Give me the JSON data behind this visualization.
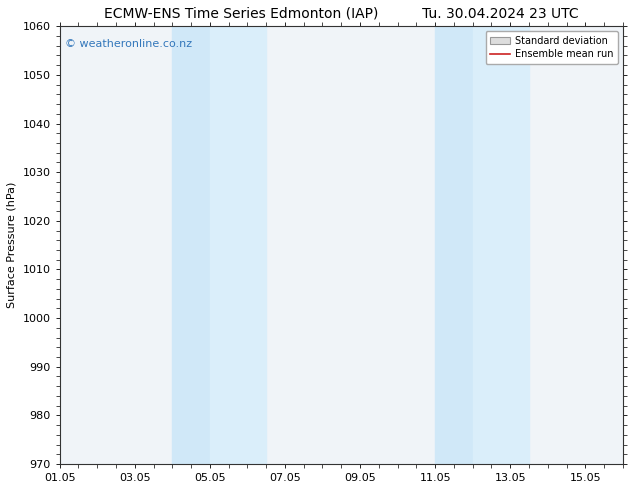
{
  "title_left": "ECMW-ENS Time Series Edmonton (IAP)",
  "title_right": "Tu. 30.04.2024 23 UTC",
  "ylabel": "Surface Pressure (hPa)",
  "ylim": [
    970,
    1060
  ],
  "yticks": [
    970,
    980,
    990,
    1000,
    1010,
    1020,
    1030,
    1040,
    1050,
    1060
  ],
  "xlim": [
    0,
    15
  ],
  "xtick_labels": [
    "01.05",
    "03.05",
    "05.05",
    "07.05",
    "09.05",
    "11.05",
    "13.05",
    "15.05"
  ],
  "xtick_positions": [
    0,
    2,
    4,
    6,
    8,
    10,
    12,
    14
  ],
  "shaded_bands": [
    {
      "x_start": 3.0,
      "x_end": 4.0
    },
    {
      "x_start": 4.0,
      "x_end": 5.5
    },
    {
      "x_start": 10.0,
      "x_end": 11.0
    },
    {
      "x_start": 11.0,
      "x_end": 12.5
    }
  ],
  "shaded_colors": [
    "#d0e8f8",
    "#daeefa",
    "#d0e8f8",
    "#daeefa"
  ],
  "plot_bg_color": "#f0f4f8",
  "background_color": "#ffffff",
  "watermark": "© weatheronline.co.nz",
  "watermark_color": "#3377bb",
  "legend_std_label": "Standard deviation",
  "legend_mean_label": "Ensemble mean run",
  "legend_mean_color": "#cc2222",
  "legend_std_facecolor": "#dddddd",
  "legend_std_edgecolor": "#999999",
  "title_fontsize": 10,
  "axis_fontsize": 8,
  "tick_fontsize": 8,
  "watermark_fontsize": 8
}
